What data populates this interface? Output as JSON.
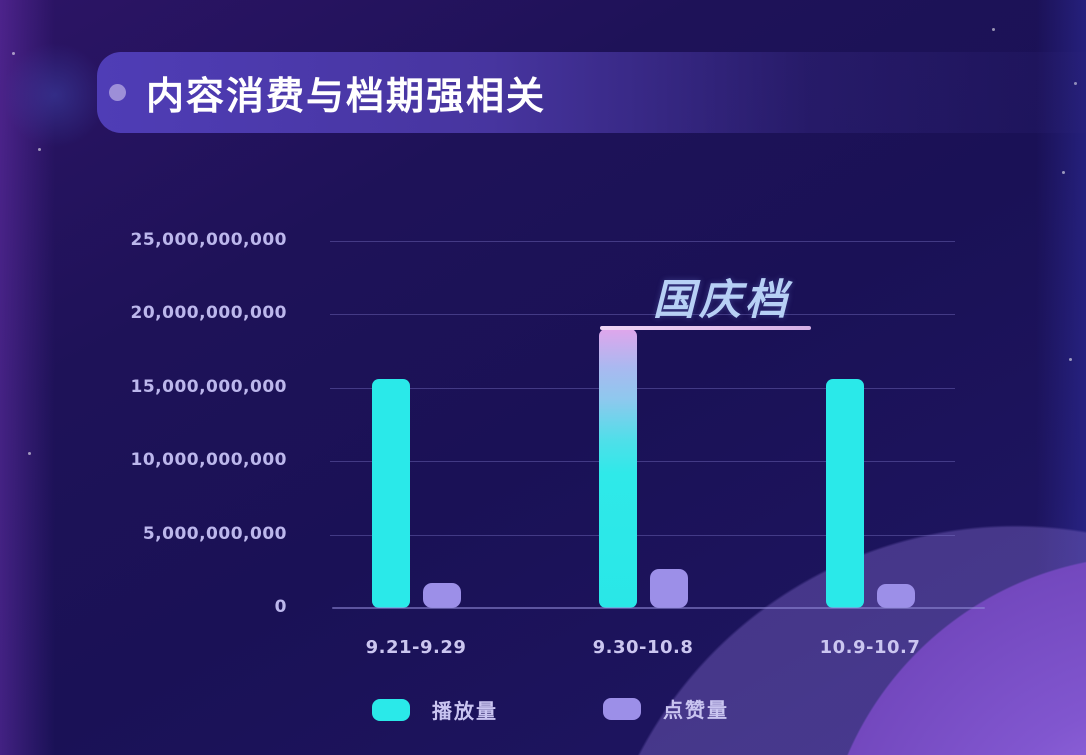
{
  "title_bar": {
    "title": "内容消费与档期强相关"
  },
  "chart_data": {
    "type": "bar",
    "title": "内容消费与档期强相关",
    "categories": [
      "9.21-9.29",
      "9.30-10.8",
      "10.9-10.7"
    ],
    "series": [
      {
        "name": "播放量",
        "color": "#2ae9e9",
        "values": [
          15600000000,
          19000000000,
          15600000000
        ]
      },
      {
        "name": "点赞量",
        "color": "#9c8fe8",
        "values": [
          1700000000,
          2650000000,
          1650000000
        ]
      }
    ],
    "ylim": [
      0,
      25000000000
    ],
    "y_tick_interval": 5000000000,
    "y_tick_labels": [
      "0",
      "5,000,000,000",
      "10,000,000,000",
      "15,000,000,000",
      "20,000,000,000",
      "25,000,000,000"
    ],
    "xlabel": "",
    "ylabel": "",
    "grid": true,
    "legend_position": "bottom",
    "legend": [
      "播放量",
      "点赞量"
    ],
    "annotation": {
      "text": "国庆档",
      "category": "9.30-10.8",
      "color": "#b7d0f5"
    },
    "highlight": {
      "category": "9.30-10.8",
      "series": "播放量",
      "gradient": [
        "#dfa6ec",
        "#8fc8ee",
        "#2fe9e9"
      ]
    }
  }
}
